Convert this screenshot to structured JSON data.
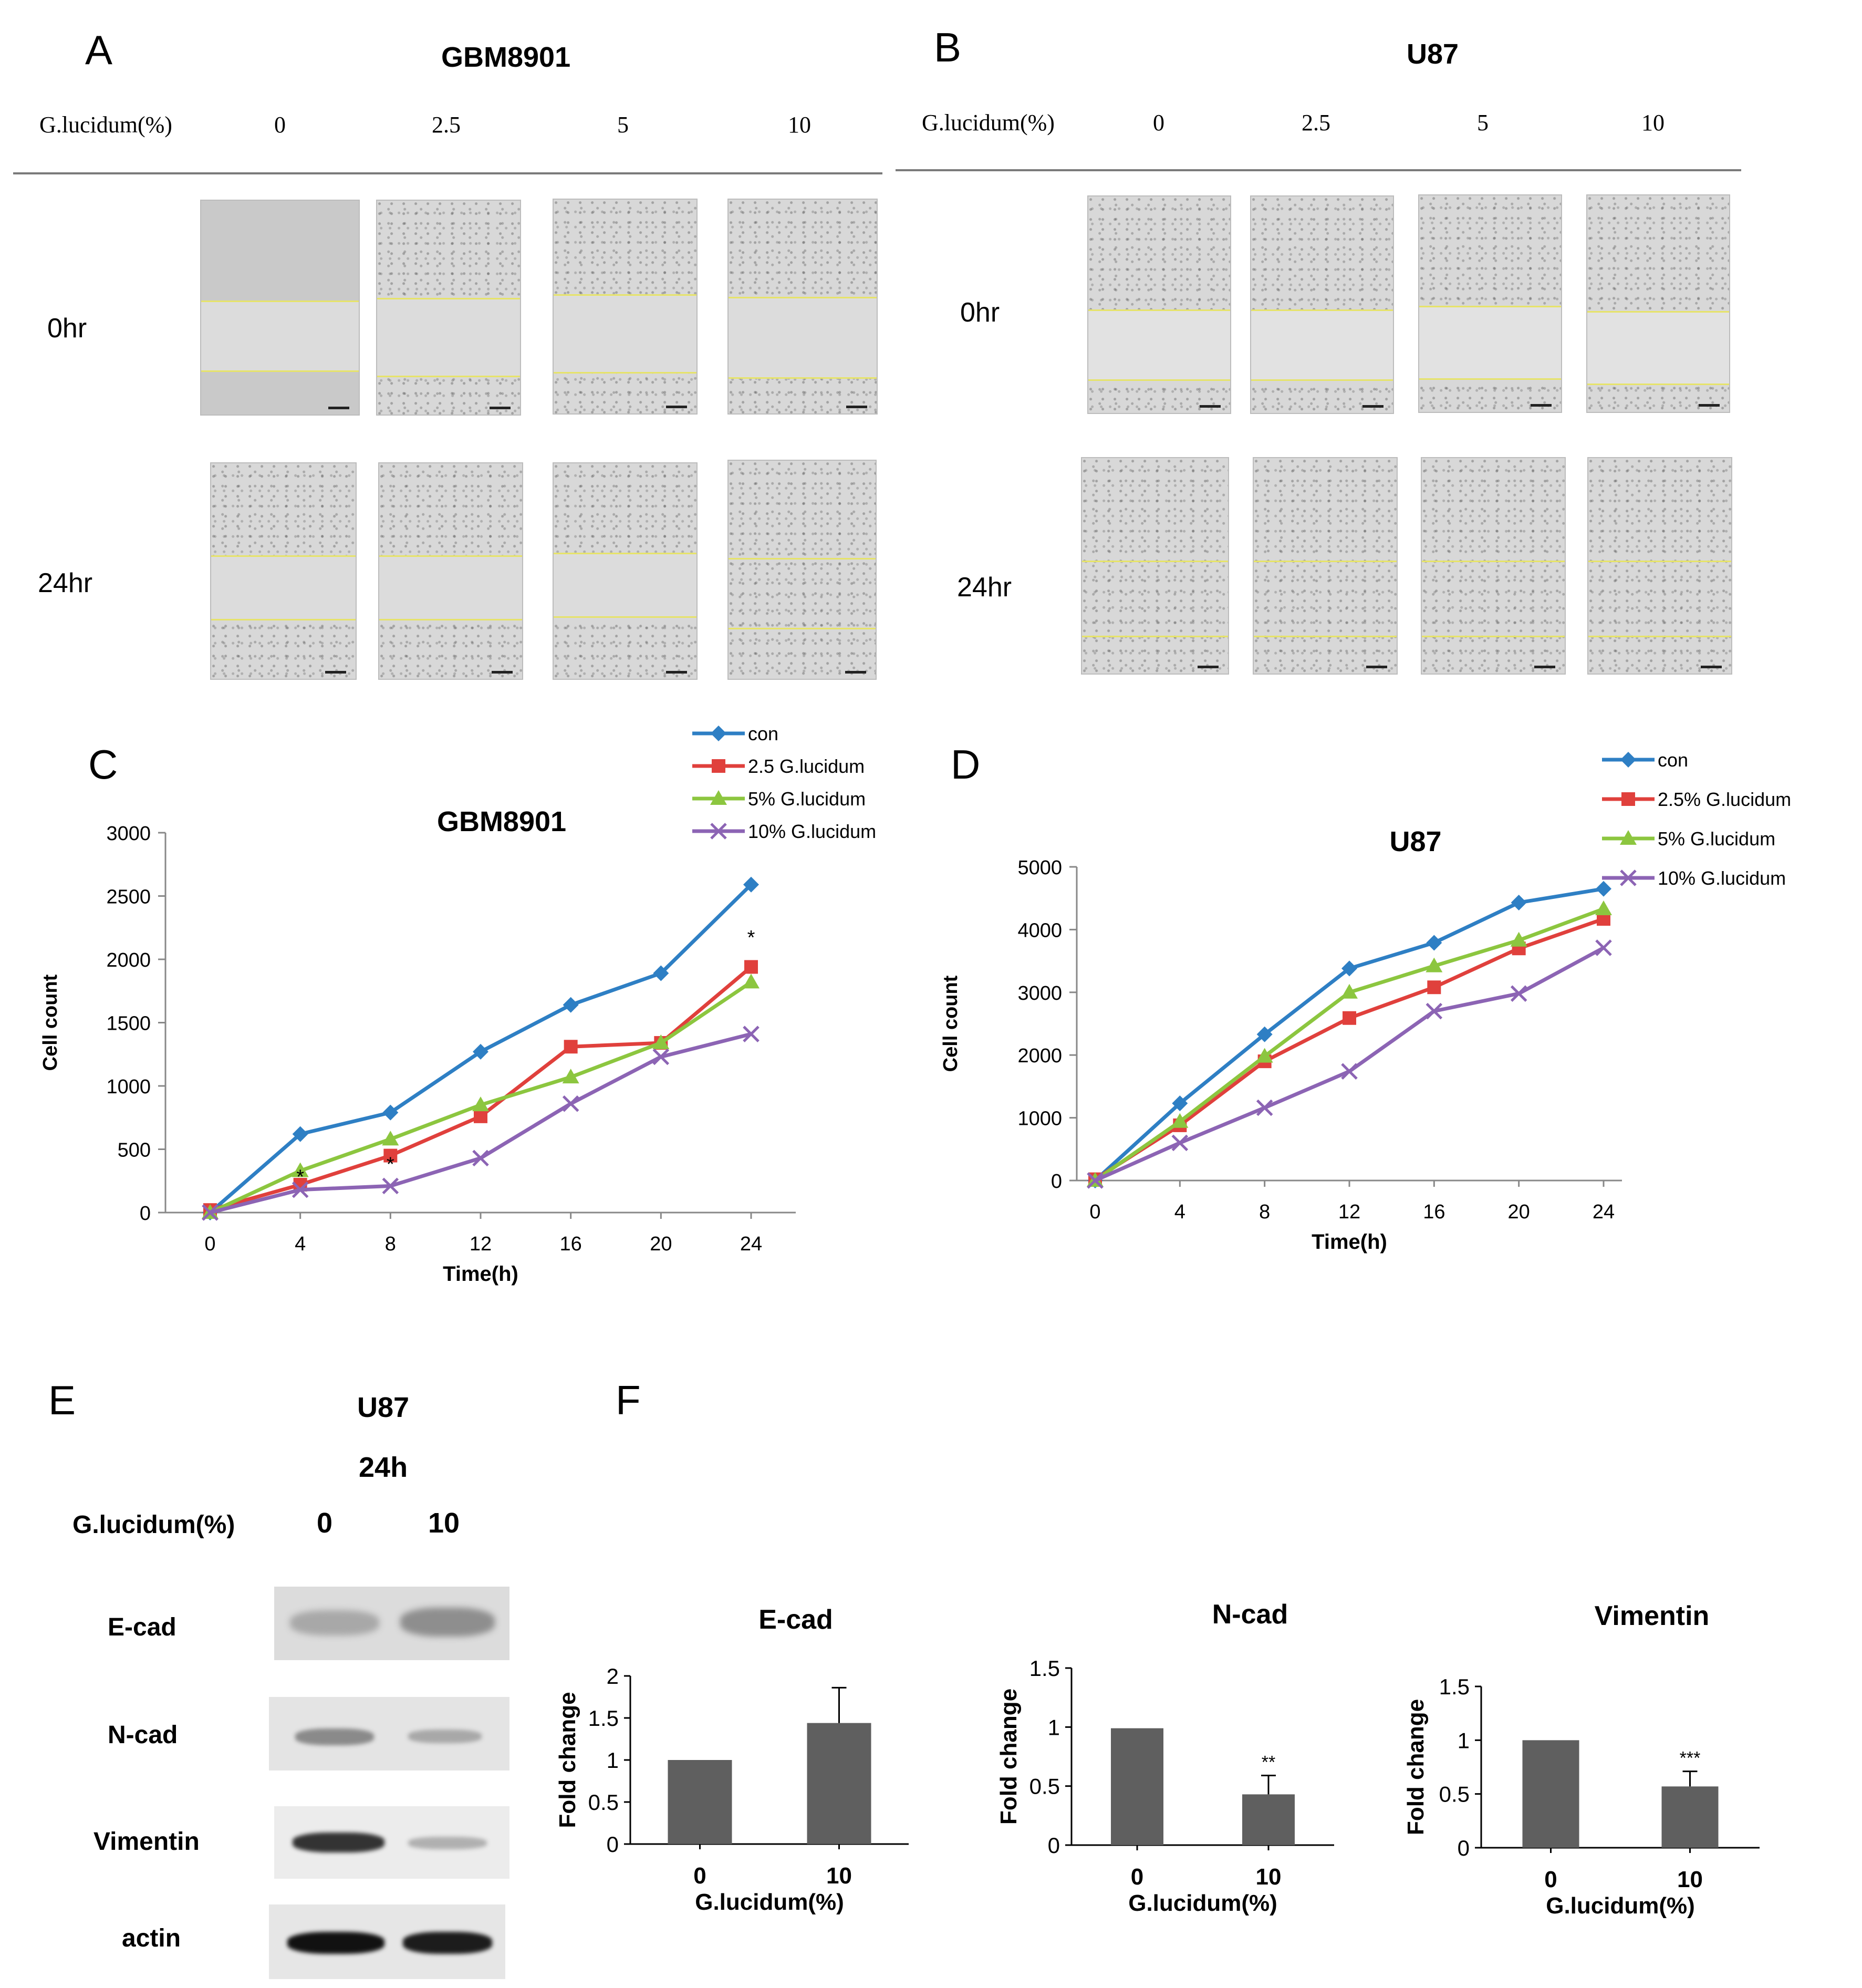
{
  "panels": {
    "A": {
      "letter": "A",
      "cell_line": "GBM8901"
    },
    "B": {
      "letter": "B",
      "cell_line": "U87"
    },
    "C": {
      "letter": "C"
    },
    "D": {
      "letter": "D"
    },
    "E": {
      "letter": "E",
      "cell_line": "U87",
      "time": "24h"
    },
    "F": {
      "letter": "F"
    }
  },
  "wound": {
    "treatment_label": "G.lucidum(%)",
    "doses": [
      "0",
      "2.5",
      "5",
      "10"
    ],
    "time_rows": [
      "0hr",
      "24hr"
    ]
  },
  "western": {
    "treatment_label": "G.lucidum(%)",
    "doses": [
      "0",
      "10"
    ],
    "proteins": [
      "E-cad",
      "N-cad",
      "Vimentin",
      "actin"
    ]
  },
  "colors": {
    "con": "#2e7fc4",
    "g25": "#e0403c",
    "g5": "#8cc63f",
    "g10": "#8c64b4",
    "bar": "#5f5f5f",
    "axis": "#888888",
    "yellow": "#e6e36a"
  },
  "chart_data": [
    {
      "id": "C",
      "type": "line",
      "title": "GBM8901",
      "xlabel": "Time(h)",
      "ylabel": "Cell count",
      "x": [
        0,
        4,
        8,
        12,
        16,
        20,
        24
      ],
      "xticks": [
        "0",
        "4",
        "8",
        "12",
        "16",
        "20",
        "24"
      ],
      "ylim": [
        0,
        3000
      ],
      "yticks": [
        "0",
        "500",
        "1000",
        "1500",
        "2000",
        "2500",
        "3000"
      ],
      "series": [
        {
          "name": "con",
          "marker": "diamond",
          "values": [
            0,
            620,
            790,
            1270,
            1640,
            1890,
            2590
          ]
        },
        {
          "name": "2.5 G.lucidum",
          "marker": "square",
          "values": [
            20,
            220,
            450,
            760,
            1310,
            1340,
            1940
          ]
        },
        {
          "name": "5% G.lucidum",
          "marker": "triangle",
          "values": [
            0,
            330,
            580,
            850,
            1070,
            1340,
            1820
          ]
        },
        {
          "name": "10% G.lucidum",
          "marker": "x",
          "values": [
            0,
            180,
            210,
            430,
            860,
            1230,
            1410
          ]
        }
      ],
      "annotations": [
        {
          "x": 4,
          "y": 230,
          "text": "*"
        },
        {
          "x": 8,
          "y": 330,
          "text": "*"
        },
        {
          "x": 24,
          "y": 2120,
          "text": "*"
        }
      ]
    },
    {
      "id": "D",
      "type": "line",
      "title": "U87",
      "xlabel": "Time(h)",
      "ylabel": "Cell count",
      "x": [
        0,
        4,
        8,
        12,
        16,
        20,
        24
      ],
      "xticks": [
        "0",
        "4",
        "8",
        "12",
        "16",
        "20",
        "24"
      ],
      "ylim": [
        0,
        5000
      ],
      "yticks": [
        "0",
        "1000",
        "2000",
        "3000",
        "4000",
        "5000"
      ],
      "series": [
        {
          "name": "con",
          "marker": "diamond",
          "values": [
            0,
            1230,
            2330,
            3380,
            3790,
            4430,
            4650
          ]
        },
        {
          "name": "2.5% G.lucidum",
          "marker": "square",
          "values": [
            20,
            880,
            1900,
            2590,
            3080,
            3700,
            4170
          ]
        },
        {
          "name": "5% G.lucidum",
          "marker": "triangle",
          "values": [
            0,
            940,
            1980,
            3000,
            3420,
            3830,
            4330
          ]
        },
        {
          "name": "10% G.lucidum",
          "marker": "x",
          "values": [
            0,
            600,
            1160,
            1740,
            2700,
            2980,
            3710
          ]
        }
      ],
      "annotations": []
    },
    {
      "id": "F1",
      "type": "bar",
      "title": "E-cad",
      "xlabel": "G.lucidum(%)",
      "ylabel": "Fold change",
      "categories": [
        "0",
        "10"
      ],
      "values": [
        1.0,
        1.44
      ],
      "errors": [
        0.0,
        0.42
      ],
      "ylim": [
        0,
        2
      ],
      "yticks": [
        "0",
        "0.5",
        "1",
        "1.5",
        "2"
      ],
      "significance": [
        "",
        ""
      ]
    },
    {
      "id": "F2",
      "type": "bar",
      "title": "N-cad",
      "xlabel": "G.lucidum(%)",
      "ylabel": "Fold change",
      "categories": [
        "0",
        "10"
      ],
      "values": [
        0.99,
        0.43
      ],
      "errors": [
        0.0,
        0.16
      ],
      "ylim": [
        0,
        1.5
      ],
      "yticks": [
        "0",
        "0.5",
        "1",
        "1.5"
      ],
      "significance": [
        "",
        "**"
      ]
    },
    {
      "id": "F3",
      "type": "bar",
      "title": "Vimentin",
      "xlabel": "G.lucidum(%)",
      "ylabel": "Fold change",
      "categories": [
        "0",
        "10"
      ],
      "values": [
        1.0,
        0.57
      ],
      "errors": [
        0.0,
        0.14
      ],
      "ylim": [
        0,
        1.5
      ],
      "yticks": [
        "0",
        "0.5",
        "1",
        "1.5"
      ],
      "significance": [
        "",
        "***"
      ]
    }
  ]
}
